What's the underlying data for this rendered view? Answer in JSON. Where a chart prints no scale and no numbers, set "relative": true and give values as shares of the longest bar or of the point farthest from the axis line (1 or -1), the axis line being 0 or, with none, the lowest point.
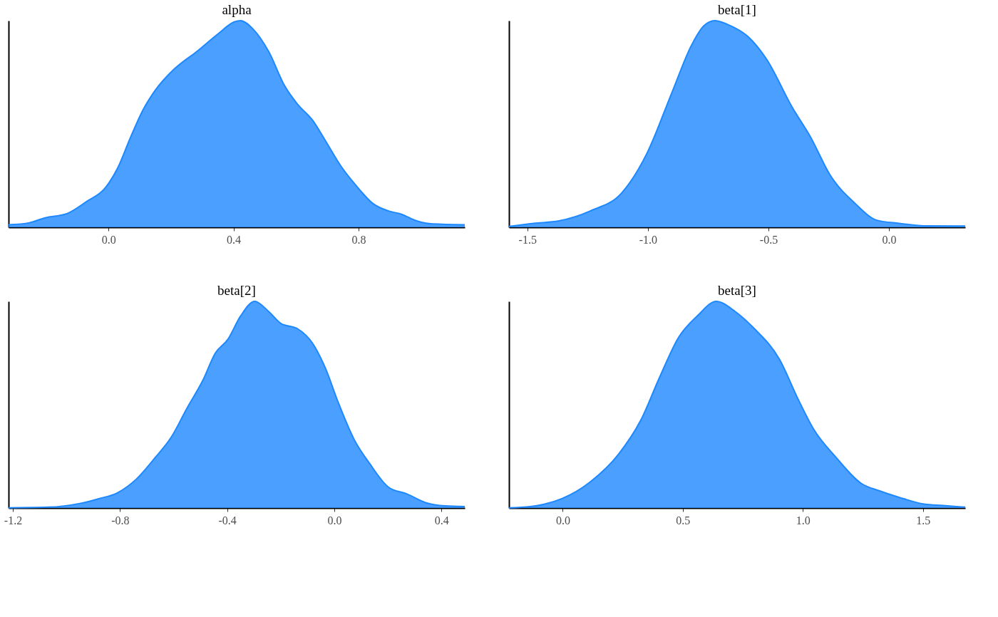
{
  "chart_data": [
    {
      "type": "area",
      "title": "alpha",
      "relative": true,
      "tick_labels": "x",
      "color": "#1e88ff",
      "xlim": [
        -0.32,
        1.14
      ],
      "xticks": [
        {
          "value": 0,
          "label": "0.0"
        },
        0.4,
        0.8
      ],
      "x": [
        -0.32,
        -0.253,
        -0.203,
        -0.132,
        -0.072,
        -0.011,
        0.029,
        0.07,
        0.11,
        0.15,
        0.211,
        0.281,
        0.352,
        0.402,
        0.422,
        0.462,
        0.513,
        0.563,
        0.604,
        0.654,
        0.694,
        0.745,
        0.795,
        0.845,
        0.896,
        0.936,
        0.986,
        1.037,
        1.14
      ],
      "values": [
        0.012,
        0.022,
        0.046,
        0.067,
        0.123,
        0.19,
        0.286,
        0.434,
        0.567,
        0.664,
        0.767,
        0.849,
        0.938,
        0.994,
        1.0,
        0.96,
        0.849,
        0.686,
        0.597,
        0.516,
        0.419,
        0.293,
        0.197,
        0.116,
        0.079,
        0.064,
        0.031,
        0.016,
        0.012
      ]
    },
    {
      "type": "area",
      "title": "beta[1]",
      "relative": true,
      "tick_labels": "x",
      "color": "#1e88ff",
      "xlim": [
        -1.576,
        0.316
      ],
      "xticks": [
        -1.5,
        {
          "value": -1,
          "label": "-1.0"
        },
        -0.5,
        {
          "value": 0,
          "label": "0.0"
        }
      ],
      "x": [
        -1.576,
        -1.474,
        -1.369,
        -1.239,
        -1.108,
        -1.003,
        -0.899,
        -0.82,
        -0.768,
        -0.723,
        -0.664,
        -0.585,
        -0.507,
        -0.402,
        -0.324,
        -0.246,
        -0.141,
        -0.05,
        0.042,
        0.146,
        0.316
      ],
      "values": [
        0.004,
        0.019,
        0.031,
        0.079,
        0.167,
        0.36,
        0.656,
        0.879,
        0.975,
        1.0,
        0.979,
        0.923,
        0.812,
        0.582,
        0.434,
        0.256,
        0.116,
        0.034,
        0.019,
        0.007,
        0.006
      ]
    },
    {
      "type": "area",
      "title": "beta[2]",
      "relative": true,
      "tick_labels": "x",
      "color": "#1e88ff",
      "xlim": [
        -1.216,
        0.487
      ],
      "xticks": [
        -1.2,
        -0.8,
        -0.4,
        {
          "value": 0,
          "label": "0.0"
        },
        0.4
      ],
      "x": [
        -1.216,
        -1.067,
        -0.95,
        -0.879,
        -0.809,
        -0.738,
        -0.668,
        -0.609,
        -0.55,
        -0.491,
        -0.444,
        -0.397,
        -0.35,
        -0.297,
        -0.245,
        -0.198,
        -0.139,
        -0.08,
        -0.033,
        0.014,
        0.073,
        0.132,
        0.202,
        0.273,
        0.343,
        0.414,
        0.487
      ],
      "values": [
        0.001,
        0.004,
        0.022,
        0.045,
        0.074,
        0.141,
        0.245,
        0.342,
        0.483,
        0.617,
        0.75,
        0.817,
        0.929,
        1.0,
        0.951,
        0.892,
        0.869,
        0.795,
        0.676,
        0.513,
        0.334,
        0.215,
        0.101,
        0.067,
        0.025,
        0.01,
        0.007
      ]
    },
    {
      "type": "area",
      "title": "beta[3]",
      "relative": true,
      "tick_labels": "x",
      "color": "#1e88ff",
      "xlim": [
        -0.224,
        1.676
      ],
      "xticks": [
        {
          "value": 0,
          "label": "0.0"
        },
        0.5,
        {
          "value": 1,
          "label": "1.0"
        },
        1.5
      ],
      "x": [
        -0.224,
        -0.135,
        -0.004,
        0.114,
        0.232,
        0.324,
        0.403,
        0.482,
        0.56,
        0.639,
        0.718,
        0.797,
        0.902,
        0.98,
        1.046,
        1.138,
        1.243,
        1.322,
        1.4,
        1.505,
        1.584,
        1.676
      ],
      "values": [
        0.001,
        0.007,
        0.045,
        0.126,
        0.26,
        0.423,
        0.632,
        0.825,
        0.929,
        1.0,
        0.951,
        0.869,
        0.721,
        0.527,
        0.379,
        0.245,
        0.119,
        0.082,
        0.052,
        0.019,
        0.012,
        0.004
      ]
    }
  ]
}
